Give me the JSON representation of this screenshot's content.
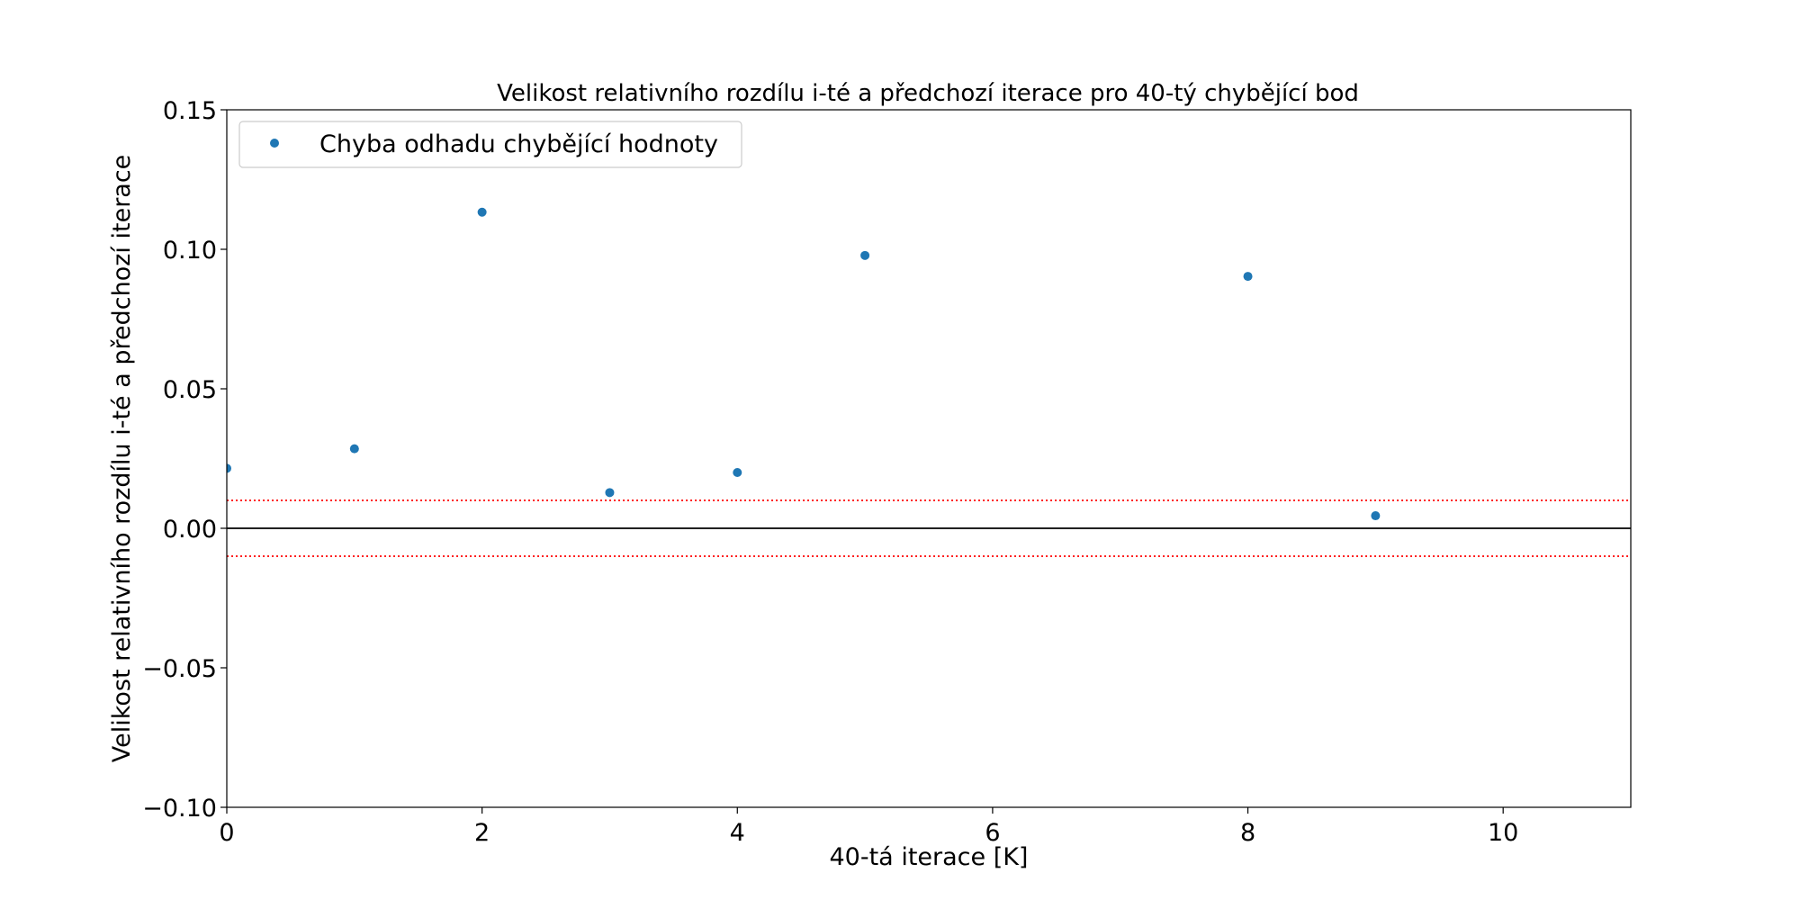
{
  "chart_data": {
    "type": "scatter",
    "title": "Velikost relativního rozdílu i-té a předchozí iterace pro 40-tý chybějící bod",
    "xlabel": "40-tá iterace [K]",
    "ylabel": "Velikost relativního rozdílu i-té a předchozí iterace",
    "xlim": [
      0,
      11
    ],
    "ylim": [
      -0.1,
      0.15
    ],
    "x_ticks": [
      0,
      2,
      4,
      6,
      8,
      10
    ],
    "x_tick_labels": [
      "0",
      "2",
      "4",
      "6",
      "8",
      "10"
    ],
    "y_ticks": [
      -0.1,
      -0.05,
      0.0,
      0.05,
      0.1,
      0.15
    ],
    "y_tick_labels": [
      "−0.10",
      "−0.05",
      "0.00",
      "0.05",
      "0.10",
      "0.15"
    ],
    "grid": false,
    "legend_position": "upper-left",
    "series": [
      {
        "name": "Chyba odhadu chybějící hodnoty",
        "color": "#1f77b4",
        "marker": "circle",
        "x": [
          0,
          1,
          2,
          3,
          4,
          5,
          8,
          9
        ],
        "y": [
          0.0215,
          0.0285,
          0.1133,
          0.0128,
          0.02,
          0.0978,
          0.0903,
          0.0045
        ]
      }
    ],
    "reference_lines": [
      {
        "kind": "horizontal",
        "y": 0.0,
        "color": "#000000",
        "style": "solid"
      },
      {
        "kind": "horizontal",
        "y": 0.01,
        "color": "#ff0000",
        "style": "dotted"
      },
      {
        "kind": "horizontal",
        "y": -0.01,
        "color": "#ff0000",
        "style": "dotted"
      }
    ]
  }
}
